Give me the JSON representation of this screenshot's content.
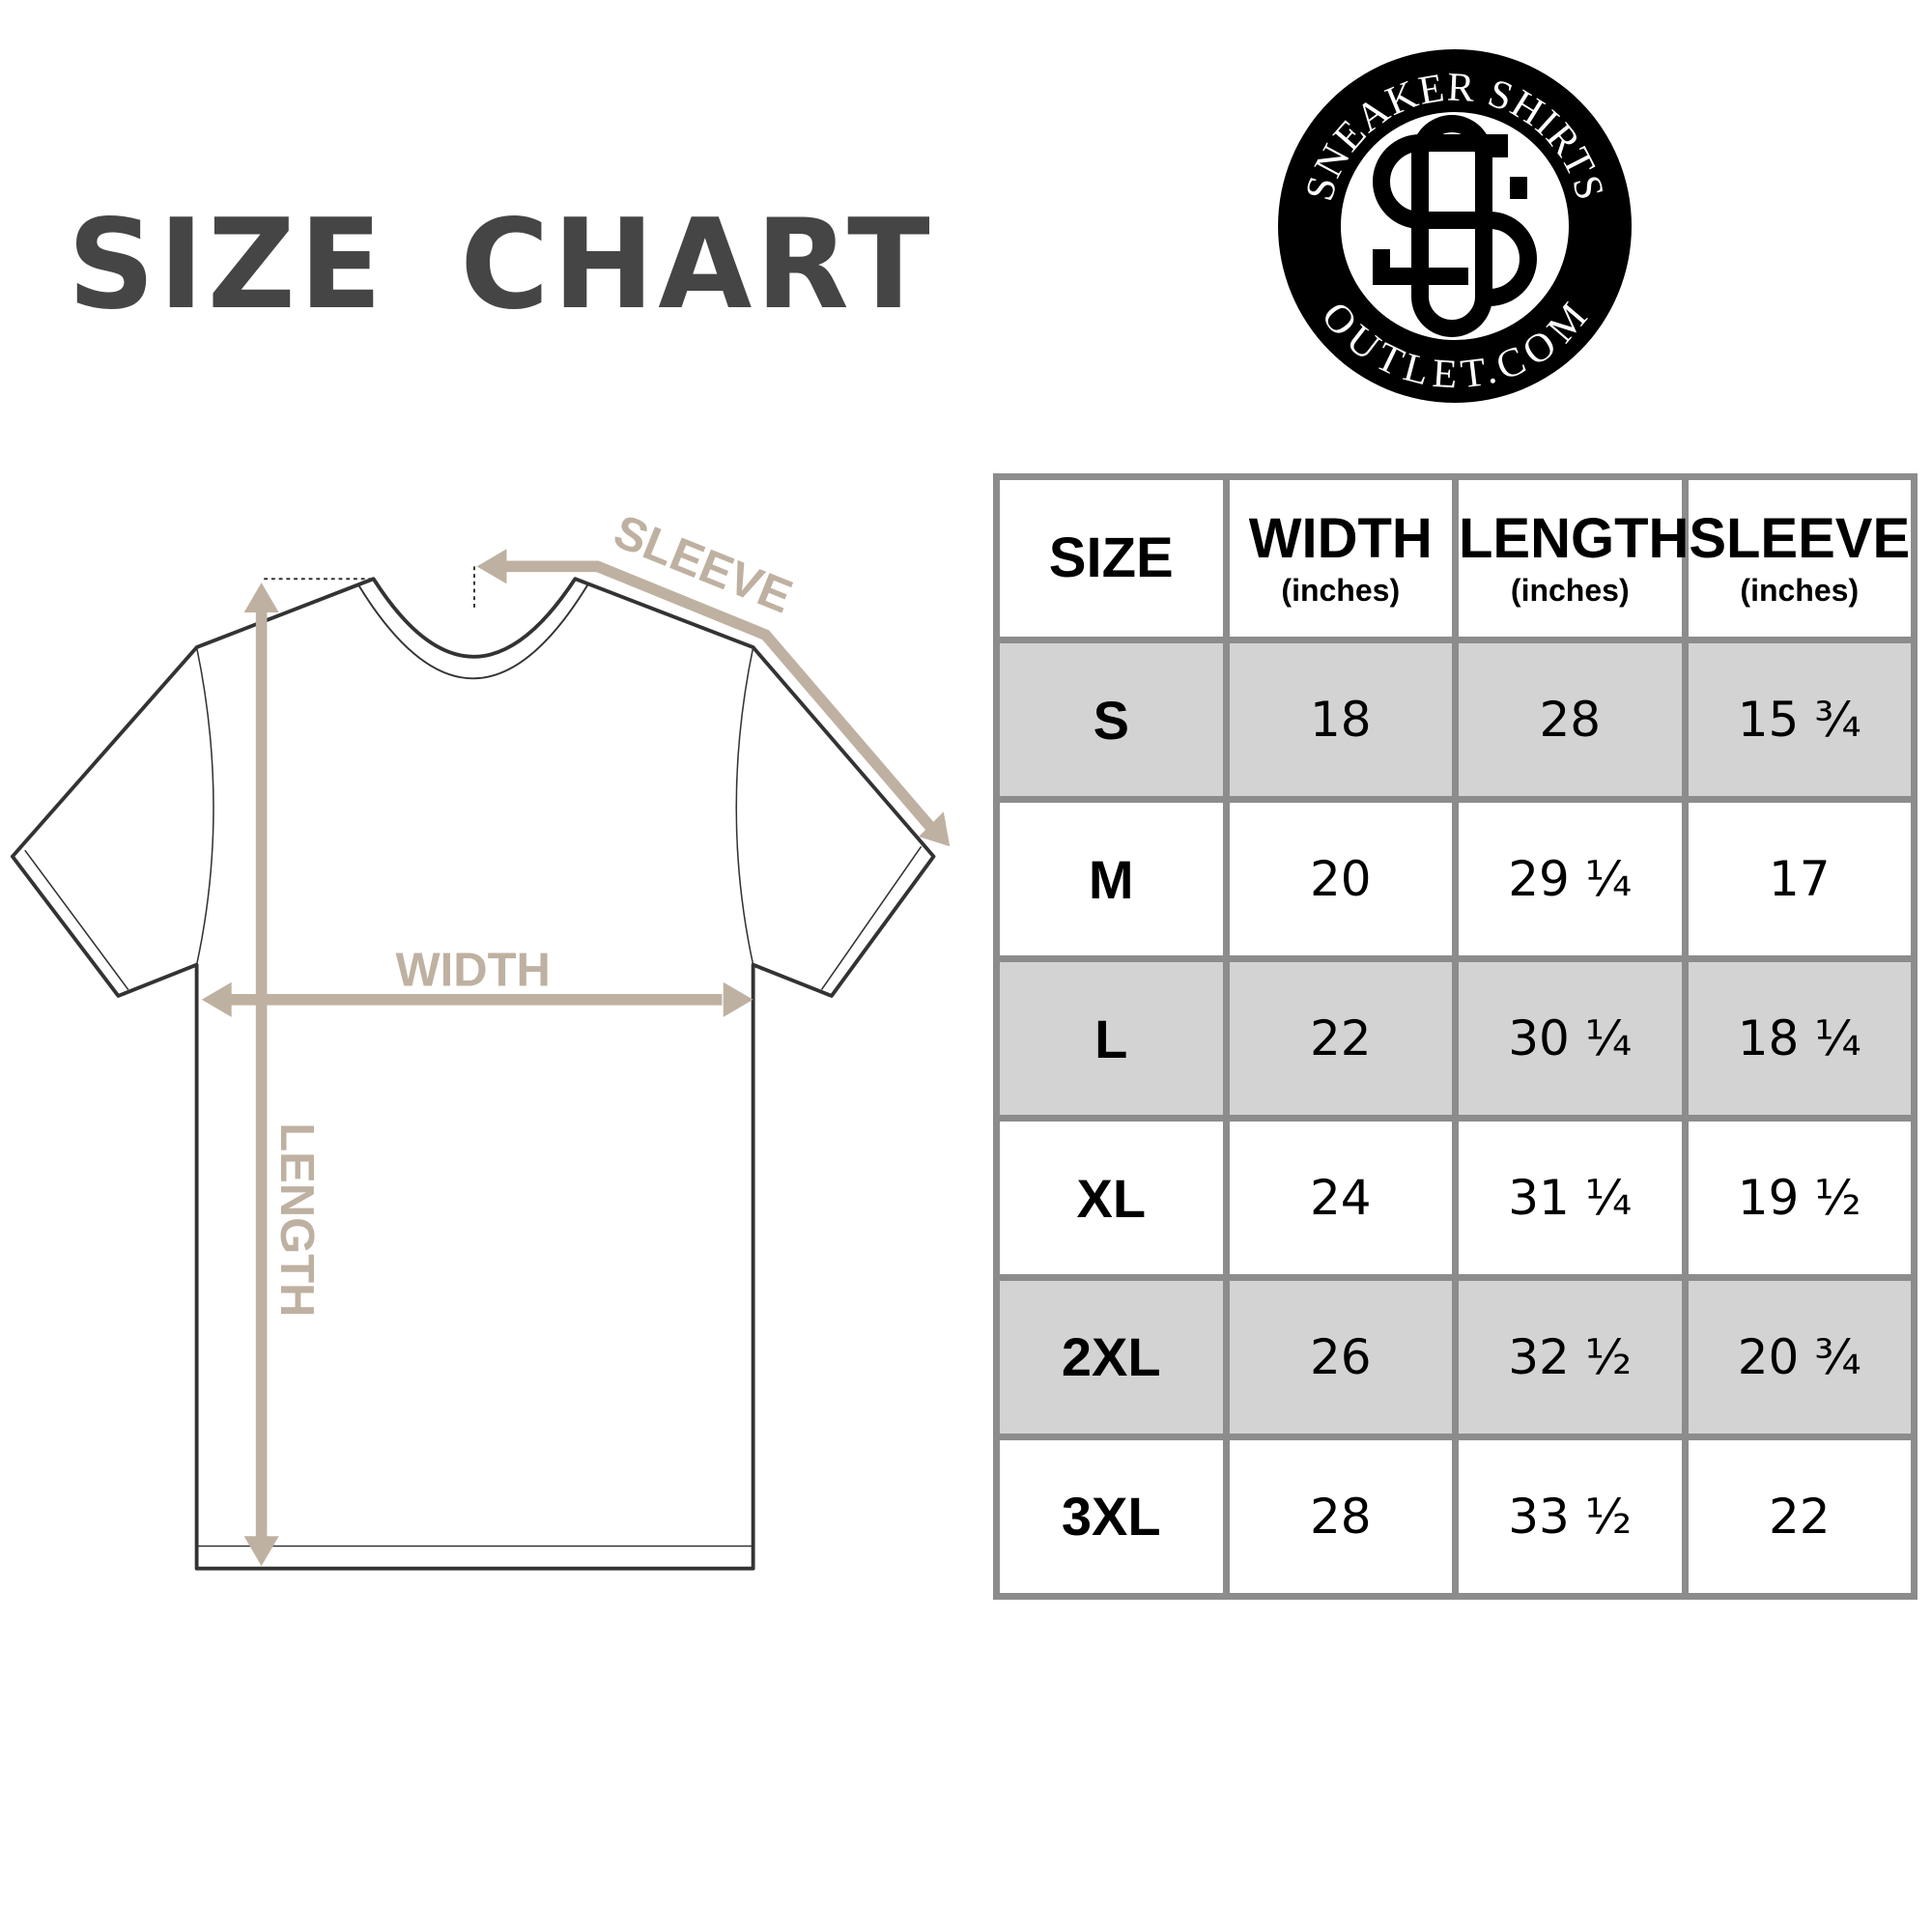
{
  "title": "SIZE CHART",
  "logo": {
    "top_text": "SNEAKER SHIRTS",
    "bottom_text": "OUTLET.COM",
    "monogram": "SO"
  },
  "diagram": {
    "sleeve_label": "SLEEVE",
    "width_label": "WIDTH",
    "length_label": "LENGTH",
    "arrow_color": "#bfb1a1"
  },
  "table": {
    "headers": [
      {
        "label": "SIZE",
        "unit": ""
      },
      {
        "label": "WIDTH",
        "unit": "(inches)"
      },
      {
        "label": "LENGTH",
        "unit": "(inches)"
      },
      {
        "label": "SLEEVE",
        "unit": "(inches)"
      }
    ],
    "rows": [
      [
        "S",
        "18",
        "28",
        "15 ¾"
      ],
      [
        "M",
        "20",
        "29 ¼",
        "17"
      ],
      [
        "L",
        "22",
        "30 ¼",
        "18 ¼"
      ],
      [
        "XL",
        "24",
        "31 ¼",
        "19 ½"
      ],
      [
        "2XL",
        "26",
        "32 ½",
        "20 ¾"
      ],
      [
        "3XL",
        "28",
        "33 ½",
        "22"
      ]
    ],
    "shade_color": "#d3d3d3",
    "border_color": "#8c8c8c"
  }
}
